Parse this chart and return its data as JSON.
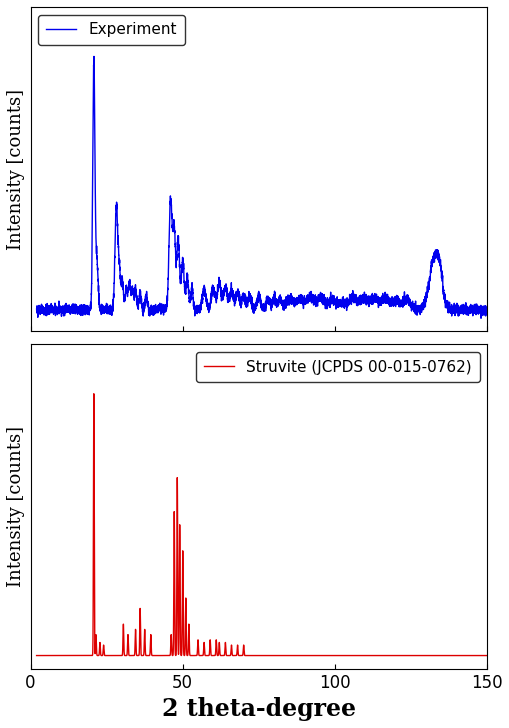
{
  "title": "",
  "xlabel": "2 theta-degree",
  "ylabel": "Intensity [counts]",
  "xlim": [
    2,
    150
  ],
  "blue_color": "#0000EE",
  "red_color": "#DD0000",
  "legend1": "Experiment",
  "legend2": "Struvite (JCPDS 00-015-0762)",
  "linewidth": 1.0,
  "background_color": "#ffffff",
  "xlabel_fontsize": 17,
  "ylabel_fontsize": 13,
  "legend_fontsize": 11,
  "tick_fontsize": 12,
  "xticks": [
    0,
    50,
    100,
    150
  ]
}
